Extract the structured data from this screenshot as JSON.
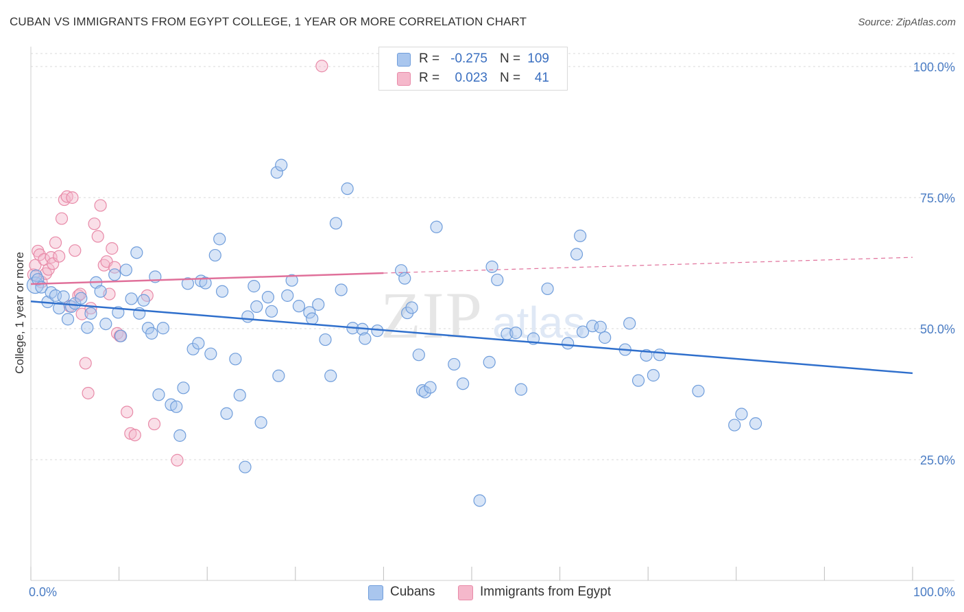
{
  "title": "CUBAN VS IMMIGRANTS FROM EGYPT COLLEGE, 1 YEAR OR MORE CORRELATION CHART",
  "source": "Source: ZipAtlas.com",
  "watermark": {
    "zip": "ZIP",
    "atlas": "atlas"
  },
  "colors": {
    "blue_fill": "#a9c6ee",
    "blue_stroke": "#6f9ddb",
    "blue_line": "#2f6fcc",
    "pink_fill": "#f5b8cb",
    "pink_stroke": "#e88aa8",
    "pink_line": "#e0709a",
    "grid": "#d8d8d8",
    "axis_label": "#4a7cc4"
  },
  "legend": {
    "rows": [
      {
        "r_label": "R =",
        "r_value": "-0.275",
        "n_label": "N =",
        "n_value": "109"
      },
      {
        "r_label": "R =",
        "r_value": "0.023",
        "n_label": "N =",
        "n_value": "41"
      }
    ]
  },
  "bottom_legend": {
    "series1": "Cubans",
    "series2": "Immigrants from Egypt"
  },
  "chart_data": {
    "type": "scatter",
    "title": "CUBAN VS IMMIGRANTS FROM EGYPT COLLEGE, 1 YEAR OR MORE CORRELATION CHART",
    "xlabel": "",
    "ylabel": "College, 1 year or more",
    "xlim": [
      0,
      100
    ],
    "ylim": [
      0,
      105
    ],
    "x_tick_labels": [
      "0.0%",
      "100.0%"
    ],
    "y_ticks": [
      25,
      50,
      75,
      100
    ],
    "y_tick_labels": [
      "25.0%",
      "50.0%",
      "75.0%",
      "100.0%"
    ],
    "grid": true,
    "series": [
      {
        "name": "Cubans",
        "r": -0.275,
        "n": 109,
        "trend": {
          "x": [
            0,
            100
          ],
          "y": [
            55.2,
            41.5
          ]
        },
        "points": [
          [
            0.5,
            58.3
          ],
          [
            0.6,
            60.1
          ],
          [
            0.8,
            59.4
          ],
          [
            1.2,
            57.9
          ],
          [
            1.9,
            55.1
          ],
          [
            2.3,
            56.9
          ],
          [
            2.8,
            56.3
          ],
          [
            3.2,
            53.9
          ],
          [
            3.7,
            56.1
          ],
          [
            4.2,
            51.8
          ],
          [
            4.6,
            54.2
          ],
          [
            5.0,
            54.8
          ],
          [
            5.7,
            55.8
          ],
          [
            6.4,
            50.2
          ],
          [
            6.8,
            52.9
          ],
          [
            7.4,
            58.8
          ],
          [
            7.9,
            57.1
          ],
          [
            8.5,
            50.9
          ],
          [
            9.5,
            60.3
          ],
          [
            9.9,
            53.1
          ],
          [
            10.2,
            48.6
          ],
          [
            10.8,
            61.2
          ],
          [
            11.4,
            55.7
          ],
          [
            12.0,
            64.5
          ],
          [
            12.3,
            52.9
          ],
          [
            12.8,
            55.4
          ],
          [
            13.3,
            50.1
          ],
          [
            13.7,
            49.1
          ],
          [
            14.1,
            59.9
          ],
          [
            14.5,
            37.4
          ],
          [
            15.0,
            50.1
          ],
          [
            15.9,
            35.5
          ],
          [
            16.5,
            35.1
          ],
          [
            16.9,
            29.6
          ],
          [
            17.3,
            38.7
          ],
          [
            17.8,
            58.6
          ],
          [
            18.4,
            46.1
          ],
          [
            19.0,
            47.2
          ],
          [
            19.3,
            59.1
          ],
          [
            19.8,
            58.7
          ],
          [
            20.4,
            45.2
          ],
          [
            20.9,
            64.0
          ],
          [
            21.4,
            67.1
          ],
          [
            21.7,
            57.1
          ],
          [
            22.2,
            33.8
          ],
          [
            23.2,
            44.2
          ],
          [
            23.7,
            37.3
          ],
          [
            24.3,
            23.6
          ],
          [
            24.6,
            52.3
          ],
          [
            25.3,
            58.1
          ],
          [
            25.6,
            54.2
          ],
          [
            26.1,
            32.1
          ],
          [
            26.9,
            56.0
          ],
          [
            27.3,
            53.3
          ],
          [
            27.9,
            79.8
          ],
          [
            28.1,
            41.0
          ],
          [
            28.4,
            81.2
          ],
          [
            29.1,
            56.3
          ],
          [
            29.6,
            59.2
          ],
          [
            30.4,
            54.3
          ],
          [
            31.6,
            53.1
          ],
          [
            31.9,
            51.9
          ],
          [
            32.6,
            54.6
          ],
          [
            33.4,
            47.9
          ],
          [
            34.0,
            41.0
          ],
          [
            34.6,
            70.1
          ],
          [
            35.2,
            57.4
          ],
          [
            35.9,
            76.7
          ],
          [
            36.5,
            50.1
          ],
          [
            37.6,
            49.9
          ],
          [
            37.9,
            48.1
          ],
          [
            39.3,
            49.6
          ],
          [
            42.0,
            61.1
          ],
          [
            42.4,
            59.6
          ],
          [
            42.7,
            53.0
          ],
          [
            43.2,
            54.0
          ],
          [
            44.0,
            45.0
          ],
          [
            44.4,
            38.2
          ],
          [
            44.7,
            37.9
          ],
          [
            45.3,
            38.8
          ],
          [
            46.0,
            69.4
          ],
          [
            48.0,
            43.2
          ],
          [
            49.0,
            39.5
          ],
          [
            50.9,
            17.2
          ],
          [
            52.0,
            43.6
          ],
          [
            52.3,
            61.8
          ],
          [
            52.9,
            59.3
          ],
          [
            54.0,
            49.0
          ],
          [
            55.0,
            49.2
          ],
          [
            55.6,
            38.4
          ],
          [
            57.0,
            48.1
          ],
          [
            58.6,
            57.6
          ],
          [
            60.9,
            47.2
          ],
          [
            61.9,
            64.2
          ],
          [
            62.3,
            67.7
          ],
          [
            62.6,
            49.4
          ],
          [
            63.7,
            50.5
          ],
          [
            64.6,
            50.3
          ],
          [
            65.1,
            48.3
          ],
          [
            67.4,
            46.0
          ],
          [
            67.9,
            51.0
          ],
          [
            68.9,
            40.1
          ],
          [
            69.8,
            44.9
          ],
          [
            70.6,
            41.1
          ],
          [
            71.3,
            45.0
          ],
          [
            75.7,
            38.1
          ],
          [
            79.8,
            31.6
          ],
          [
            80.6,
            33.7
          ],
          [
            82.2,
            31.9
          ]
        ]
      },
      {
        "name": "Immigrants from Egypt",
        "r": 0.023,
        "n": 41,
        "trend": {
          "x": [
            0,
            40
          ],
          "y": [
            58.5,
            60.6
          ],
          "dashed_extension": {
            "x": [
              40,
              100
            ],
            "y": [
              60.6,
              63.6
            ]
          }
        },
        "points": [
          [
            0.3,
            60.3
          ],
          [
            0.5,
            62.1
          ],
          [
            0.8,
            64.8
          ],
          [
            1.0,
            64.1
          ],
          [
            1.2,
            58.9
          ],
          [
            1.5,
            63.2
          ],
          [
            1.7,
            60.5
          ],
          [
            2.0,
            61.3
          ],
          [
            2.3,
            63.6
          ],
          [
            2.5,
            62.4
          ],
          [
            2.8,
            66.4
          ],
          [
            3.2,
            63.8
          ],
          [
            3.5,
            71.0
          ],
          [
            3.8,
            74.6
          ],
          [
            4.1,
            75.2
          ],
          [
            4.4,
            54.3
          ],
          [
            4.7,
            75.0
          ],
          [
            5.0,
            64.9
          ],
          [
            5.4,
            56.3
          ],
          [
            5.8,
            52.8
          ],
          [
            6.2,
            43.4
          ],
          [
            6.5,
            37.7
          ],
          [
            6.8,
            53.9
          ],
          [
            7.2,
            70.0
          ],
          [
            7.6,
            67.6
          ],
          [
            7.9,
            73.5
          ],
          [
            8.3,
            62.1
          ],
          [
            8.6,
            62.8
          ],
          [
            8.9,
            56.6
          ],
          [
            9.2,
            65.3
          ],
          [
            9.5,
            61.7
          ],
          [
            9.8,
            49.1
          ],
          [
            10.1,
            48.6
          ],
          [
            10.9,
            34.1
          ],
          [
            11.3,
            30.0
          ],
          [
            11.8,
            29.7
          ],
          [
            13.2,
            56.3
          ],
          [
            14.0,
            31.8
          ],
          [
            16.6,
            24.9
          ],
          [
            33.0,
            100.1
          ],
          [
            5.6,
            56.6
          ]
        ]
      }
    ]
  }
}
